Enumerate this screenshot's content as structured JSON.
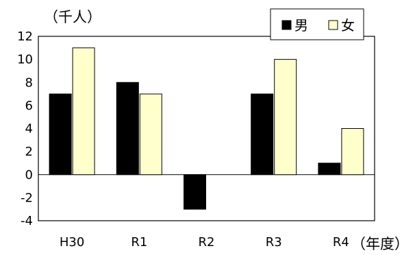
{
  "chart_data": {
    "type": "bar",
    "title": "",
    "ylabel": "（千人）",
    "xlabel": "（年度）",
    "categories": [
      "H30",
      "R1",
      "R2",
      "R3",
      "R4"
    ],
    "series": [
      {
        "name": "男",
        "values": [
          7,
          8,
          -3,
          7,
          1
        ],
        "color": "#000000"
      },
      {
        "name": "女",
        "values": [
          11,
          7,
          0,
          10,
          4
        ],
        "color": "#FFFFCC"
      }
    ],
    "ylim": [
      -4,
      12
    ],
    "yticks": [
      12,
      10,
      8,
      6,
      4,
      2,
      0,
      -2,
      -4
    ],
    "legend_position": "top-right",
    "grid": false
  }
}
